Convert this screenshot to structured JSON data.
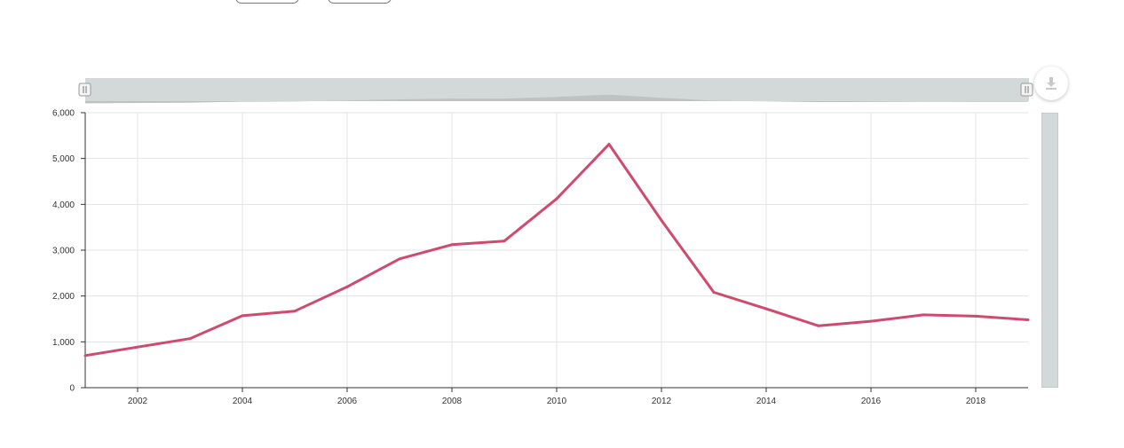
{
  "chart_data": {
    "type": "line",
    "title": "",
    "xlabel": "",
    "ylabel": "",
    "x": [
      2001,
      2003,
      2004,
      2005,
      2006,
      2007,
      2008,
      2009,
      2010,
      2011,
      2012,
      2013,
      2014,
      2015,
      2016,
      2017,
      2018,
      2019
    ],
    "series": [
      {
        "name": "",
        "color": "#d04a6e",
        "values": [
          700,
          1070,
          1570,
          1670,
          2200,
          2810,
          3120,
          3200,
          4120,
          5310,
          3650,
          2080,
          1720,
          1350,
          1450,
          1590,
          1560,
          1480
        ]
      }
    ],
    "xlim": [
      2001,
      2019
    ],
    "ylim": [
      0,
      6000
    ],
    "x_ticks": [
      "2002",
      "2004",
      "2006",
      "2008",
      "2010",
      "2012",
      "2014",
      "2016",
      "2018"
    ],
    "y_ticks": [
      "0",
      "1,000",
      "2,000",
      "3,000",
      "4,000",
      "5,000",
      "6,000"
    ],
    "grid": true,
    "legend": "none"
  },
  "controls": {
    "download_icon": "download-icon",
    "navigator_handle_icon": "handle-icon"
  },
  "colors": {
    "line": "#d04a6e",
    "navigator_bg": "#d2d9d8",
    "navigator_fill": "#bec3c2",
    "grid": "#e3e3e3"
  }
}
